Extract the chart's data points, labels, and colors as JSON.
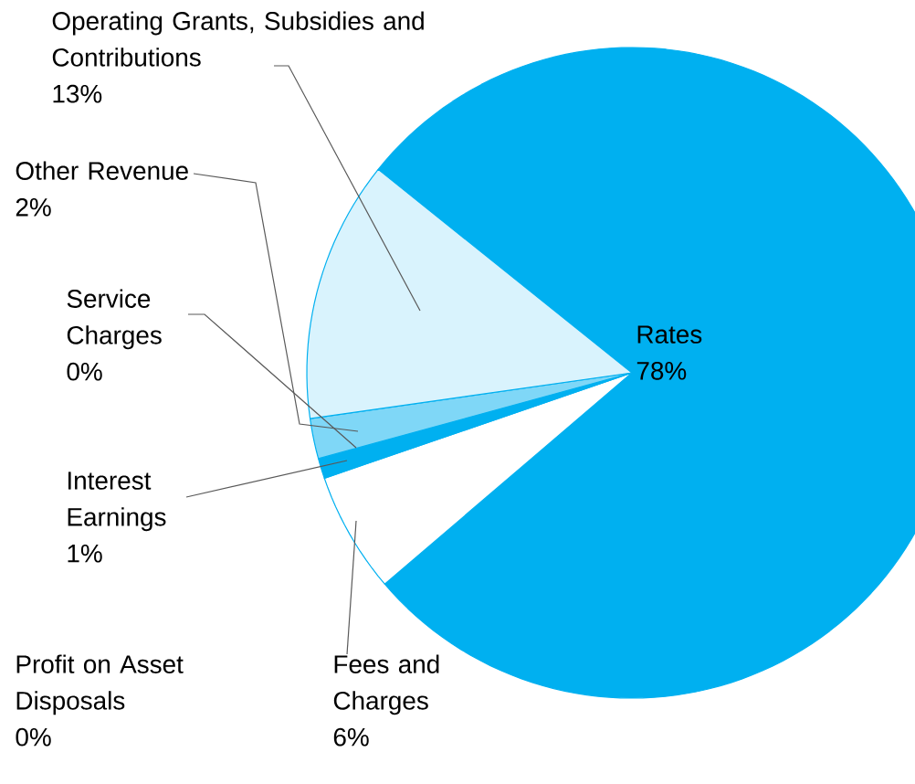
{
  "chart_data": {
    "type": "pie",
    "categories": [
      "Rates",
      "Fees and Charges",
      "Profit on Asset Disposals",
      "Interest Earnings",
      "Service Charges",
      "Other Revenue",
      "Operating Grants, Subsidies and Contributions"
    ],
    "values": [
      78,
      6,
      0,
      1,
      0,
      2,
      13
    ],
    "value_labels": [
      "78%",
      "6%",
      "0%",
      "1%",
      "0%",
      "2%",
      "13%"
    ],
    "colors": [
      "#00b0f0",
      "#ffffff",
      "#00b0f0",
      "#00b0f0",
      "#00b0f0",
      "#7fd7f7",
      "#d9f3fd"
    ]
  }
}
